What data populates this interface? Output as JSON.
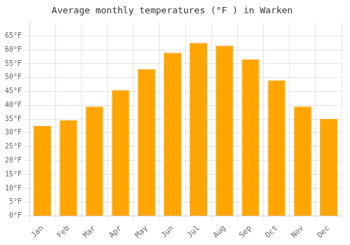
{
  "chart_data": {
    "type": "bar",
    "title": "Average monthly temperatures (°F ) in Warken",
    "categories": [
      "Jan",
      "Feb",
      "Mar",
      "Apr",
      "May",
      "Jun",
      "Jul",
      "Aug",
      "Sep",
      "Oct",
      "Nov",
      "Dec"
    ],
    "values": [
      32.5,
      34.5,
      39.5,
      45.5,
      53.0,
      59.0,
      62.5,
      61.5,
      56.5,
      49.0,
      39.5,
      35.0
    ],
    "color": "#FFA500",
    "ylim": [
      0,
      70
    ],
    "yticks": [
      {
        "value": 0,
        "label": "0°F"
      },
      {
        "value": 5,
        "label": "5°F"
      },
      {
        "value": 10,
        "label": "10°F"
      },
      {
        "value": 15,
        "label": "15°F"
      },
      {
        "value": 20,
        "label": "20°F"
      },
      {
        "value": 25,
        "label": "25°F"
      },
      {
        "value": 30,
        "label": "30°F"
      },
      {
        "value": 35,
        "label": "35°F"
      },
      {
        "value": 40,
        "label": "40°F"
      },
      {
        "value": 45,
        "label": "45°F"
      },
      {
        "value": 50,
        "label": "50°F"
      },
      {
        "value": 55,
        "label": "55°F"
      },
      {
        "value": 60,
        "label": "60°F"
      },
      {
        "value": 65,
        "label": "65°F"
      }
    ],
    "grid": true
  }
}
